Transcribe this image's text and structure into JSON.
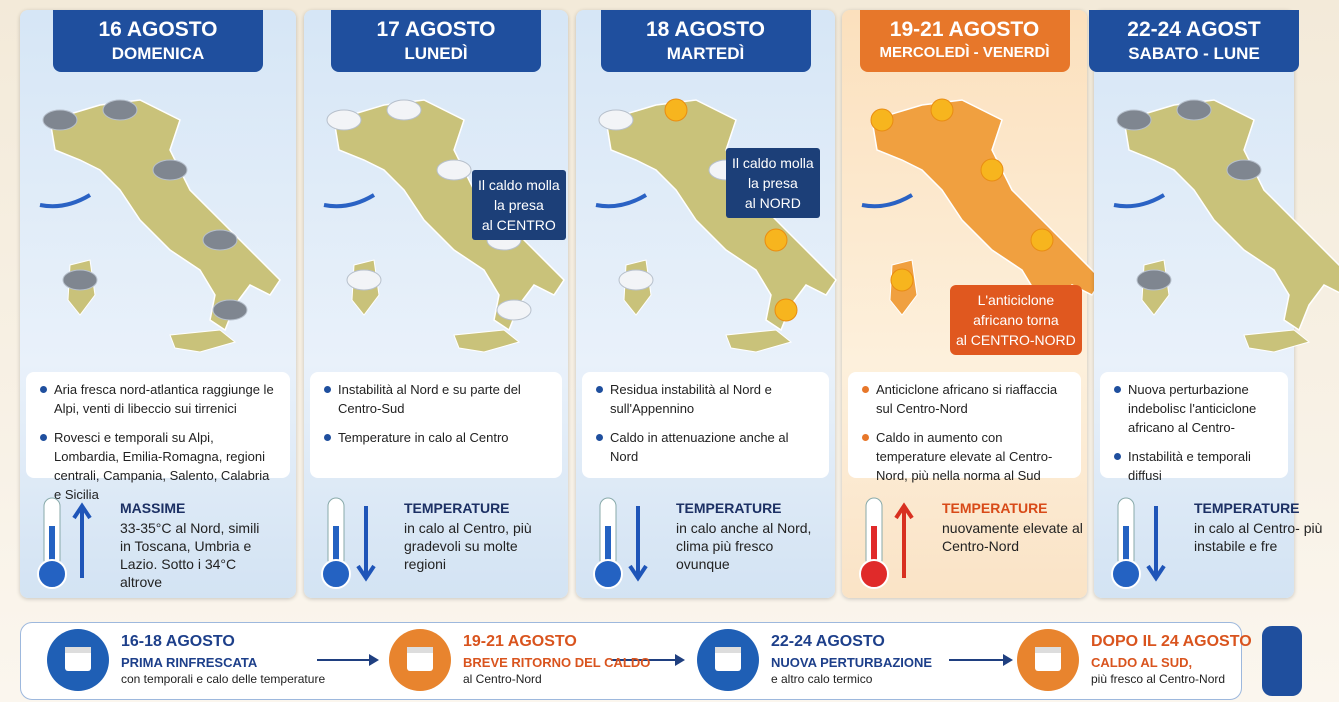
{
  "panels": [
    {
      "title": "16 AGOSTO",
      "subtitle": "DOMENICA",
      "bullets": [
        "Aria fresca nord-atlantica raggiunge le Alpi, venti di libeccio sui tirrenici",
        "Rovesci e temporali su Alpi, Lombardia, Emilia-Romagna, regioni centrali, Campania, Salento, Calabria e Sicilia"
      ],
      "temp_title": "MASSIME",
      "temp_text": "33-35°C al Nord, simili in Toscana, Umbria e Lazio. Sotto i 34°C altrove"
    },
    {
      "title": "17 AGOSTO",
      "subtitle": "LUNEDÌ",
      "callout": [
        "Il caldo molla",
        "la presa",
        "al CENTRO"
      ],
      "bullets": [
        "Instabilità al Nord e su parte del Centro-Sud",
        "Temperature in calo al Centro"
      ],
      "temp_title": "TEMPERATURE",
      "temp_text": "in calo al Centro, più gradevoli su molte regioni"
    },
    {
      "title": "18 AGOSTO",
      "subtitle": "MARTEDÌ",
      "callout": [
        "Il caldo molla",
        "la presa",
        "al NORD"
      ],
      "bullets": [
        "Residua instabilità al Nord e sull'Appennino",
        "Caldo in attenuazione anche al Nord"
      ],
      "temp_title": "TEMPERATURE",
      "temp_text": "in calo anche al Nord, clima più fresco ovunque"
    },
    {
      "title": "19-21 AGOSTO",
      "subtitle": "MERCOLEDÌ - VENERDÌ",
      "callout": [
        "L'anticiclone",
        "africano torna",
        "al CENTRO-NORD"
      ],
      "bullets": [
        "Anticiclone africano si riaffaccia sul Centro-Nord",
        "Caldo in aumento con temperature elevate al Centro-Nord, più nella norma al Sud"
      ],
      "temp_title": "TEMPERATURE",
      "temp_text": "nuovamente elevate al Centro-Nord"
    },
    {
      "title": "22-24 AGOST",
      "subtitle": "SABATO - LUNE",
      "bullets": [
        "Nuova perturbazione indebolisc l'anticiclone africano al Centro-",
        "Instabilità e temporali diffusi"
      ],
      "temp_title": "TEMPERATURE",
      "temp_text": "in calo al Centro- più instabile e fre"
    }
  ],
  "timeline": [
    {
      "title": "16-18 AGOSTO",
      "subtitle": "PRIMA RINFRESCATA",
      "text": "con temporali e calo delle temperature"
    },
    {
      "title": "19-21 AGOSTO",
      "subtitle": "BREVE RITORNO DEL CALDO",
      "text": "al Centro-Nord"
    },
    {
      "title": "22-24 AGOSTO",
      "subtitle": "NUOVA PERTURBAZIONE",
      "text": "e altro calo termico"
    },
    {
      "title": "DOPO IL 24 AGOSTO",
      "subtitle": "CALDO AL SUD,",
      "text": "più fresco al Centro-Nord"
    }
  ]
}
